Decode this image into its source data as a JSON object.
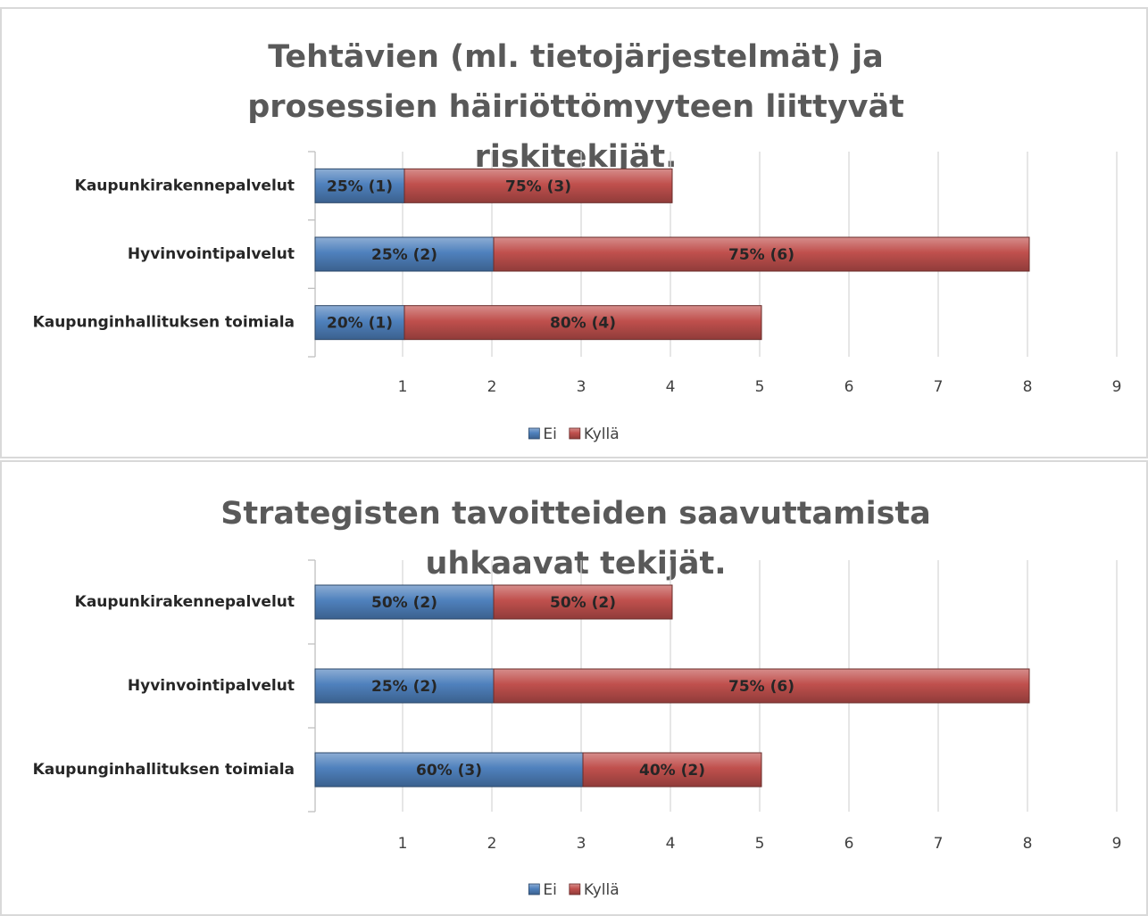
{
  "chart_data": [
    {
      "type": "bar",
      "orientation": "horizontal",
      "stacked": true,
      "title": "Tehtävien (ml. tietojärjestelmät) ja prosessien häiriöttömyyteen liittyvät riskitekijät.",
      "categories": [
        "Kaupunkirakennepalvelut",
        "Hyvinvointipalvelut",
        "Kaupunginhallituksen toimiala"
      ],
      "series": [
        {
          "name": "Ei",
          "color": "#4f81bd",
          "values": [
            1,
            2,
            1
          ],
          "value_labels": [
            "25% (1)",
            "25% (2)",
            "20% (1)"
          ]
        },
        {
          "name": "Kyllä",
          "color": "#c0504d",
          "values": [
            3,
            6,
            4
          ],
          "value_labels": [
            "75% (3)",
            "75% (6)",
            "80% (4)"
          ]
        }
      ],
      "xlim": [
        0,
        9
      ],
      "xticks": [
        1,
        2,
        3,
        4,
        5,
        6,
        7,
        8,
        9
      ],
      "grid": true,
      "legend": "bottom"
    },
    {
      "type": "bar",
      "orientation": "horizontal",
      "stacked": true,
      "title": "Strategisten tavoitteiden saavuttamista uhkaavat tekijät.",
      "categories": [
        "Kaupunkirakennepalvelut",
        "Hyvinvointipalvelut",
        "Kaupunginhallituksen toimiala"
      ],
      "series": [
        {
          "name": "Ei",
          "color": "#4f81bd",
          "values": [
            2,
            2,
            3
          ],
          "value_labels": [
            "50% (2)",
            "25% (2)",
            "60% (3)"
          ]
        },
        {
          "name": "Kyllä",
          "color": "#c0504d",
          "values": [
            2,
            6,
            2
          ],
          "value_labels": [
            "50% (2)",
            "75% (6)",
            "40% (2)"
          ]
        }
      ],
      "xlim": [
        0,
        9
      ],
      "xticks": [
        1,
        2,
        3,
        4,
        5,
        6,
        7,
        8,
        9
      ],
      "grid": true,
      "legend": "bottom"
    }
  ]
}
